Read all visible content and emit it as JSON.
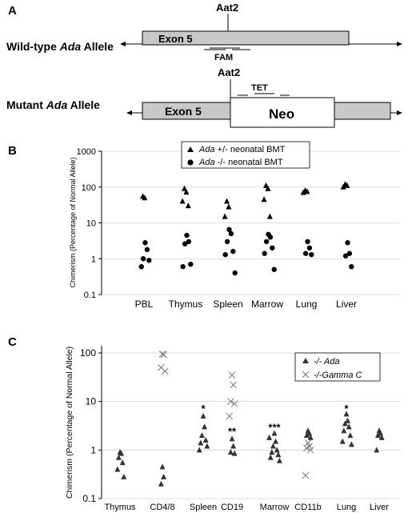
{
  "panel_a": {
    "label": "A",
    "wildtype_label": "Wild-type",
    "wildtype_gene": "Ada",
    "wildtype_suffix": "Allele",
    "mutant_label": "Mutant",
    "mutant_gene": "Ada",
    "mutant_suffix": "Allele",
    "aat2_top": "Aat2",
    "aat2_bottom": "Aat2",
    "exon5_top": "Exon 5",
    "exon5_bottom": "Exon 5",
    "fam": "FAM",
    "tet": "TET",
    "neo": "Neo"
  },
  "chart_data": [
    {
      "panel": "B",
      "type": "scatter",
      "ylabel": "Chimerism (Percentage of Normal Allele)",
      "yscale": "log",
      "ylim": [
        0.1,
        1000
      ],
      "yticks": [
        "0.1",
        "1",
        "10",
        "100",
        "1000"
      ],
      "categories": [
        "PBL",
        "Thymus",
        "Spleen",
        "Marrow",
        "Lung",
        "Liver"
      ],
      "grid": true,
      "legend_position": "top-center",
      "series": [
        {
          "name": "+/- neonatal BMT",
          "gene": "Ada",
          "marker": "triangle",
          "points": [
            [
              0,
              55
            ],
            [
              0,
              50
            ],
            [
              1,
              90
            ],
            [
              1,
              72
            ],
            [
              1,
              40
            ],
            [
              1,
              30
            ],
            [
              2,
              40
            ],
            [
              2,
              28
            ],
            [
              2,
              15
            ],
            [
              3,
              110
            ],
            [
              3,
              90
            ],
            [
              3,
              45
            ],
            [
              3,
              15
            ],
            [
              4,
              80
            ],
            [
              4,
              75
            ],
            [
              4,
              70
            ],
            [
              5,
              120
            ],
            [
              5,
              110
            ],
            [
              5,
              100
            ]
          ]
        },
        {
          "name": "-/- neonatal BMT",
          "gene": "Ada",
          "marker": "circle",
          "points": [
            [
              0,
              2.8
            ],
            [
              0,
              1.8
            ],
            [
              0,
              1.0
            ],
            [
              0,
              0.9
            ],
            [
              0,
              0.6
            ],
            [
              1,
              4.5
            ],
            [
              1,
              3.0
            ],
            [
              1,
              2.6
            ],
            [
              1,
              0.7
            ],
            [
              1,
              0.6
            ],
            [
              2,
              6.5
            ],
            [
              2,
              5.0
            ],
            [
              2,
              3.0
            ],
            [
              2,
              1.6
            ],
            [
              2,
              1.3
            ],
            [
              2,
              0.4
            ],
            [
              3,
              4.8
            ],
            [
              3,
              4.0
            ],
            [
              3,
              3.0
            ],
            [
              3,
              2.0
            ],
            [
              3,
              1.4
            ],
            [
              3,
              0.5
            ],
            [
              4,
              3.0
            ],
            [
              4,
              2.0
            ],
            [
              4,
              1.4
            ],
            [
              4,
              1.3
            ],
            [
              5,
              2.8
            ],
            [
              5,
              1.4
            ],
            [
              5,
              1.2
            ],
            [
              5,
              0.6
            ]
          ]
        }
      ]
    },
    {
      "panel": "C",
      "type": "scatter",
      "ylabel": "Chimerism (Percentage of Normal Allele)",
      "yscale": "log",
      "ylim": [
        0.1,
        100
      ],
      "yticks": [
        "0.1",
        "1",
        "10",
        "100"
      ],
      "categories": [
        "Thymus",
        "CD4/8",
        "Spleen",
        "CD19",
        "Marrow",
        "CD11b",
        "Lung",
        "Liver"
      ],
      "grid": true,
      "legend_position": "top-right",
      "annotations": [
        {
          "text": "*",
          "category": 2,
          "y": 7
        },
        {
          "text": "**",
          "category": 3,
          "y": 2.4
        },
        {
          "text": "***",
          "category": 4,
          "y": 2.9
        },
        {
          "text": "*",
          "category": 6,
          "y": 7
        }
      ],
      "series": [
        {
          "name": "-/- Ada",
          "marker": "triangle",
          "points": [
            [
              0,
              0.9
            ],
            [
              0,
              0.85
            ],
            [
              0,
              0.7
            ],
            [
              0,
              0.55
            ],
            [
              0,
              0.4
            ],
            [
              0,
              0.28
            ],
            [
              1,
              0.45
            ],
            [
              1,
              0.28
            ],
            [
              1,
              0.2
            ],
            [
              2,
              5.0
            ],
            [
              2,
              3.0
            ],
            [
              2,
              2.0
            ],
            [
              2,
              1.6
            ],
            [
              2,
              1.4
            ],
            [
              2,
              1.2
            ],
            [
              2,
              1.0
            ],
            [
              3,
              1.7
            ],
            [
              3,
              1.2
            ],
            [
              3,
              0.9
            ],
            [
              3,
              0.85
            ],
            [
              4,
              2.2
            ],
            [
              4,
              1.5
            ],
            [
              4,
              1.2
            ],
            [
              4,
              1.0
            ],
            [
              4,
              0.9
            ],
            [
              4,
              0.8
            ],
            [
              4,
              0.7
            ],
            [
              4,
              0.6
            ],
            [
              4,
              1.8
            ],
            [
              5,
              2.5
            ],
            [
              5,
              2.2
            ],
            [
              5,
              2.0
            ],
            [
              5,
              1.8
            ],
            [
              6,
              5.5
            ],
            [
              6,
              4.0
            ],
            [
              6,
              3.5
            ],
            [
              6,
              3.0
            ],
            [
              6,
              2.5
            ],
            [
              6,
              2.0
            ],
            [
              6,
              1.5
            ],
            [
              6,
              1.3
            ],
            [
              7,
              2.5
            ],
            [
              7,
              2.2
            ],
            [
              7,
              2.0
            ],
            [
              7,
              1.8
            ],
            [
              7,
              1.0
            ]
          ]
        },
        {
          "name": "-/-Gamma C",
          "marker": "x",
          "points": [
            [
              1,
              95
            ],
            [
              1,
              92
            ],
            [
              1,
              50
            ],
            [
              1,
              42
            ],
            [
              3,
              35
            ],
            [
              3,
              22
            ],
            [
              3,
              10
            ],
            [
              3,
              9
            ],
            [
              3,
              5
            ],
            [
              5,
              1.4
            ],
            [
              5,
              1.2
            ],
            [
              5,
              1.1
            ],
            [
              5,
              1.0
            ],
            [
              5,
              0.3
            ]
          ]
        }
      ]
    }
  ]
}
